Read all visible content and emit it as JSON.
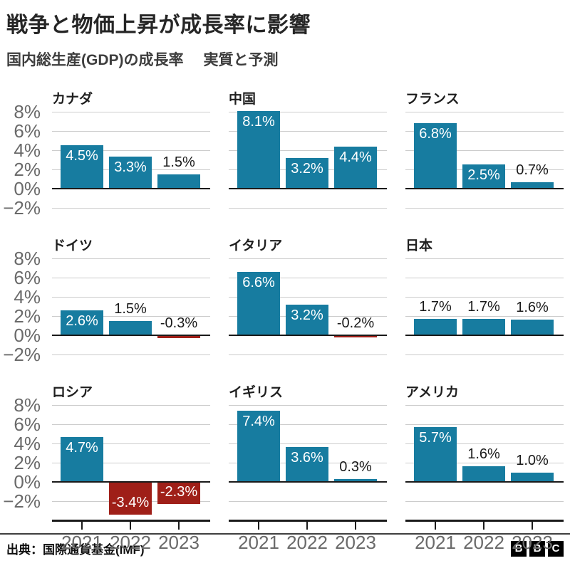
{
  "header": {
    "title": "戦争と物価上昇が成長率に影響",
    "subtitle_left": "国内総生産(GDP)の成長率",
    "subtitle_right": "実質と予測"
  },
  "chart_data": {
    "type": "bar",
    "layout": "3x3 small multiples, shared axes",
    "categories": [
      "2021",
      "2022",
      "2023"
    ],
    "y_ticks": [
      8,
      6,
      4,
      2,
      0,
      -2
    ],
    "y_tick_labels": [
      "8%",
      "6%",
      "4%",
      "2%",
      "0%",
      "−2%"
    ],
    "ylim_rows_1_2": [
      -2,
      8
    ],
    "ylim_row_3": [
      -4,
      8
    ],
    "grid": "horizontal gridlines on, dark zero line, x axis line only on bottom row",
    "bar_color_positive": "#177ca0",
    "bar_color_negative": "#9f1f18",
    "panels": [
      {
        "country": "カナダ",
        "values": [
          4.5,
          3.3,
          1.5
        ],
        "value_labels": [
          "4.5%",
          "3.3%",
          "1.5%"
        ]
      },
      {
        "country": "中国",
        "values": [
          8.1,
          3.2,
          4.4
        ],
        "value_labels": [
          "8.1%",
          "3.2%",
          "4.4%"
        ]
      },
      {
        "country": "フランス",
        "values": [
          6.8,
          2.5,
          0.7
        ],
        "value_labels": [
          "6.8%",
          "2.5%",
          "0.7%"
        ]
      },
      {
        "country": "ドイツ",
        "values": [
          2.6,
          1.5,
          -0.3
        ],
        "value_labels": [
          "2.6%",
          "1.5%",
          "-0.3%"
        ]
      },
      {
        "country": "イタリア",
        "values": [
          6.6,
          3.2,
          -0.2
        ],
        "value_labels": [
          "6.6%",
          "3.2%",
          "-0.2%"
        ]
      },
      {
        "country": "日本",
        "values": [
          1.7,
          1.7,
          1.6
        ],
        "value_labels": [
          "1.7%",
          "1.7%",
          "1.6%"
        ]
      },
      {
        "country": "ロシア",
        "values": [
          4.7,
          -3.4,
          -2.3
        ],
        "value_labels": [
          "4.7%",
          "-3.4%",
          "-2.3%"
        ]
      },
      {
        "country": "イギリス",
        "values": [
          7.4,
          3.6,
          0.3
        ],
        "value_labels": [
          "7.4%",
          "3.6%",
          "0.3%"
        ]
      },
      {
        "country": "アメリカ",
        "values": [
          5.7,
          1.6,
          1.0
        ],
        "value_labels": [
          "5.7%",
          "1.6%",
          "1.0%"
        ]
      }
    ]
  },
  "footer": {
    "source": "出典：国際通貨基金(IMF)",
    "logo_letters": [
      "B",
      "B",
      "C"
    ]
  }
}
